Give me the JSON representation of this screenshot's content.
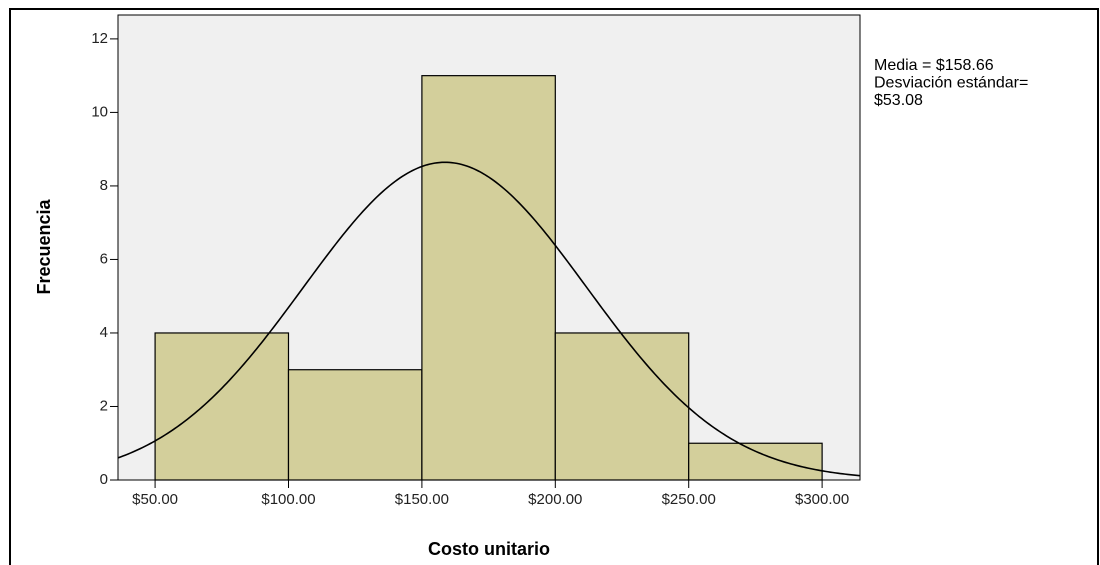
{
  "chart_data": {
    "type": "histogram",
    "x_label": "Costo unitario",
    "y_label": "Frecuencia",
    "bins": [
      50,
      100,
      150,
      200,
      250,
      300
    ],
    "counts": [
      4,
      3,
      11,
      4,
      1
    ],
    "color": "#d3cf9b",
    "xlim": [
      36.1,
      314.2
    ],
    "ylim": [
      0,
      12.65
    ],
    "xticks": [
      {
        "value": 50,
        "label": "$50.00"
      },
      {
        "value": 100,
        "label": "$100.00"
      },
      {
        "value": 150,
        "label": "$150.00"
      },
      {
        "value": 200,
        "label": "$200.00"
      },
      {
        "value": 250,
        "label": "$250.00"
      },
      {
        "value": 300,
        "label": "$300.00"
      }
    ],
    "yticks": [
      0,
      2,
      4,
      6,
      8,
      10,
      12
    ],
    "stats": [
      {
        "value": 158.66,
        "label_lines": [
          "Media = $158.66"
        ]
      },
      {
        "value": 53.08,
        "label_lines": [
          "Desviación estándar=",
          "$53.08"
        ]
      }
    ]
  }
}
